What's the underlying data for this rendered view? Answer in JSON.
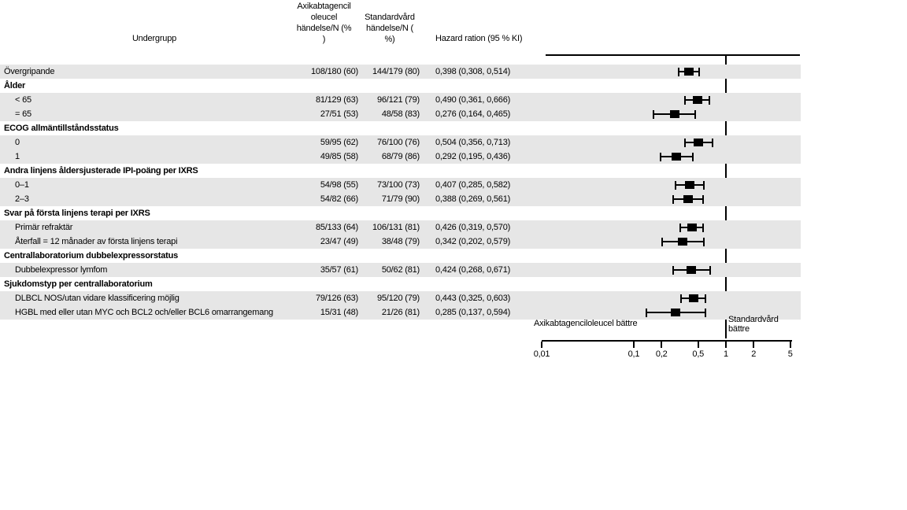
{
  "header": {
    "subgroup": "Undergrupp",
    "axi_col": "Axikabtagencil\noleucel\nhändelse/N (%\n)",
    "std_col": "Standardvård\nhändelse/N (\n%)",
    "hr_col": "Hazard ration (95 % KI)"
  },
  "colors": {
    "row_band": "#e6e6e6",
    "marker": "#000000",
    "text": "#000000",
    "background": "#ffffff"
  },
  "chart_data": {
    "type": "scatter",
    "variant": "forest-plot",
    "title": "",
    "xlabel": "Hazard ration (95 % KI)",
    "x_scale": "log",
    "xlim": [
      0.01,
      5
    ],
    "reference_line": 1,
    "grid": false,
    "x_ticks": [
      {
        "value": 0.01,
        "label": "0,01"
      },
      {
        "value": 0.1,
        "label": "0,1"
      },
      {
        "value": 0.2,
        "label": "0,2"
      },
      {
        "value": 0.5,
        "label": "0,5"
      },
      {
        "value": 1,
        "label": "1"
      },
      {
        "value": 2,
        "label": "2"
      },
      {
        "value": 5,
        "label": "5"
      }
    ],
    "left_annotation": "Axikabtagenciloleucel bättre",
    "right_annotation": "Standardvård\nbättre",
    "rows": [
      {
        "label": "Övergripande",
        "kind": "data",
        "indent": false,
        "bold": false,
        "shaded": true,
        "axi": "108/180 (60)",
        "std": "144/179 (80)",
        "hr_text": "0,398 (0,308, 0,514)",
        "hr": 0.398,
        "lo": 0.308,
        "hi": 0.514
      },
      {
        "label": "Ålder",
        "kind": "group",
        "indent": false,
        "bold": true,
        "shaded": false,
        "axi": "",
        "std": "",
        "hr_text": "",
        "hr": null,
        "lo": null,
        "hi": null
      },
      {
        "label": "< 65",
        "kind": "data",
        "indent": true,
        "bold": false,
        "shaded": true,
        "axi": "81/129 (63)",
        "std": "96/121 (79)",
        "hr_text": "0,490 (0,361, 0,666)",
        "hr": 0.49,
        "lo": 0.361,
        "hi": 0.666
      },
      {
        "label": "= 65",
        "kind": "data",
        "indent": true,
        "bold": false,
        "shaded": true,
        "axi": "27/51 (53)",
        "std": "48/58 (83)",
        "hr_text": "0,276 (0,164, 0,465)",
        "hr": 0.276,
        "lo": 0.164,
        "hi": 0.465
      },
      {
        "label": "ECOG allmäntillståndsstatus",
        "kind": "group",
        "indent": false,
        "bold": true,
        "shaded": false,
        "axi": "",
        "std": "",
        "hr_text": "",
        "hr": null,
        "lo": null,
        "hi": null
      },
      {
        "label": "0",
        "kind": "data",
        "indent": true,
        "bold": false,
        "shaded": true,
        "axi": "59/95 (62)",
        "std": "76/100 (76)",
        "hr_text": "0,504 (0,356, 0,713)",
        "hr": 0.504,
        "lo": 0.356,
        "hi": 0.713
      },
      {
        "label": "1",
        "kind": "data",
        "indent": true,
        "bold": false,
        "shaded": true,
        "axi": "49/85 (58)",
        "std": "68/79 (86)",
        "hr_text": "0,292 (0,195, 0,436)",
        "hr": 0.292,
        "lo": 0.195,
        "hi": 0.436
      },
      {
        "label": "Andra linjens åldersjusterade IPI-poäng per IXRS",
        "kind": "group",
        "indent": false,
        "bold": true,
        "shaded": false,
        "axi": "",
        "std": "",
        "hr_text": "",
        "hr": null,
        "lo": null,
        "hi": null
      },
      {
        "label": "0–1",
        "kind": "data",
        "indent": true,
        "bold": false,
        "shaded": true,
        "axi": "54/98 (55)",
        "std": "73/100 (73)",
        "hr_text": "0,407 (0,285, 0,582)",
        "hr": 0.407,
        "lo": 0.285,
        "hi": 0.582
      },
      {
        "label": "2–3",
        "kind": "data",
        "indent": true,
        "bold": false,
        "shaded": true,
        "axi": "54/82 (66)",
        "std": "71/79 (90)",
        "hr_text": "0,388 (0,269, 0,561)",
        "hr": 0.388,
        "lo": 0.269,
        "hi": 0.561
      },
      {
        "label": "Svar på första linjens terapi per IXRS",
        "kind": "group",
        "indent": false,
        "bold": true,
        "shaded": false,
        "axi": "",
        "std": "",
        "hr_text": "",
        "hr": null,
        "lo": null,
        "hi": null
      },
      {
        "label": "Primär refraktär",
        "kind": "data",
        "indent": true,
        "bold": false,
        "shaded": true,
        "axi": "85/133 (64)",
        "std": "106/131 (81)",
        "hr_text": "0,426 (0,319, 0,570)",
        "hr": 0.426,
        "lo": 0.319,
        "hi": 0.57
      },
      {
        "label": "Återfall = 12 månader av första linjens terapi",
        "kind": "data",
        "indent": true,
        "bold": false,
        "shaded": true,
        "axi": "23/47 (49)",
        "std": "38/48 (79)",
        "hr_text": "0,342 (0,202, 0,579)",
        "hr": 0.342,
        "lo": 0.202,
        "hi": 0.579
      },
      {
        "label": "Centrallaboratorium dubbelexpressorstatus",
        "kind": "group",
        "indent": false,
        "bold": true,
        "shaded": false,
        "axi": "",
        "std": "",
        "hr_text": "",
        "hr": null,
        "lo": null,
        "hi": null
      },
      {
        "label": "Dubbelexpressor lymfom",
        "kind": "data",
        "indent": true,
        "bold": false,
        "shaded": true,
        "axi": "35/57 (61)",
        "std": "50/62 (81)",
        "hr_text": "0,424 (0,268, 0,671)",
        "hr": 0.424,
        "lo": 0.268,
        "hi": 0.671
      },
      {
        "label": "Sjukdomstyp per centrallaboratorium",
        "kind": "group",
        "indent": false,
        "bold": true,
        "shaded": false,
        "axi": "",
        "std": "",
        "hr_text": "",
        "hr": null,
        "lo": null,
        "hi": null
      },
      {
        "label": "DLBCL NOS/utan vidare klassificering möjlig",
        "kind": "data",
        "indent": true,
        "bold": false,
        "shaded": true,
        "axi": "79/126 (63)",
        "std": "95/120 (79)",
        "hr_text": "0,443 (0,325, 0,603)",
        "hr": 0.443,
        "lo": 0.325,
        "hi": 0.603
      },
      {
        "label": "HGBL med eller utan MYC och BCL2 och/eller BCL6 omarrangemang",
        "kind": "data",
        "indent": true,
        "bold": false,
        "shaded": true,
        "axi": "15/31 (48)",
        "std": "21/26 (81)",
        "hr_text": "0,285 (0,137, 0,594)",
        "hr": 0.285,
        "lo": 0.137,
        "hi": 0.594
      }
    ]
  }
}
